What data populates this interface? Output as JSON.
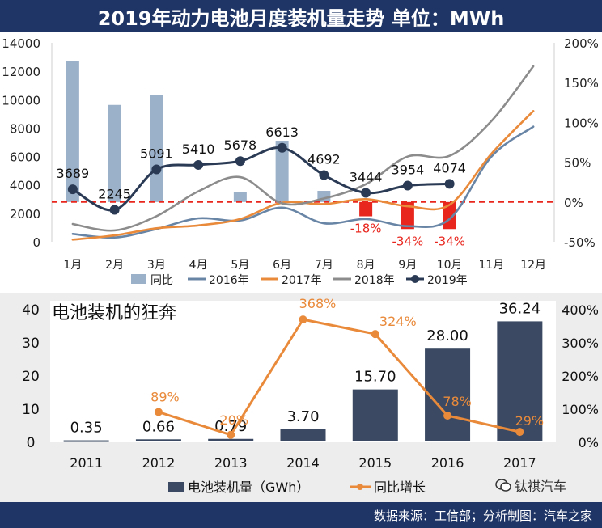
{
  "header": {
    "title": "2019年动力电池月度装机量走势  单位：MWh"
  },
  "footer": {
    "source": "数据来源：工信部；分析制图：汽车之家"
  },
  "watermark": {
    "text": "钛祺汽车",
    "icon": "wechat-icon"
  },
  "colors": {
    "banner": "#1f3566",
    "bar1": "#9bb0c9",
    "negbar": "#e8261e",
    "s2016": "#6985a6",
    "s2017": "#e98a3b",
    "s2018": "#8c8c8c",
    "s2019": "#2a3a55",
    "bar2": "#3b4a62",
    "orange": "#e98a3b",
    "panel2": "#ededed"
  },
  "chart_data": [
    {
      "type": "bar+line",
      "title": "2019年动力电池月度装机量走势",
      "categories": [
        "1月",
        "2月",
        "3月",
        "4月",
        "5月",
        "6月",
        "7月",
        "8月",
        "9月",
        "10月",
        "11月",
        "12月"
      ],
      "y_left": {
        "ticks": [
          "14000",
          "12000",
          "10000",
          "8000",
          "6000",
          "4000",
          "2000",
          "0"
        ],
        "range": [
          0,
          14000
        ]
      },
      "y_right": {
        "ticks": [
          "200%",
          "150%",
          "100%",
          "50%",
          "0%",
          "-50%"
        ],
        "range": [
          -50,
          200
        ]
      },
      "yoy_bars": {
        "name": "同比",
        "values": [
          177,
          122,
          134,
          null,
          13,
          77,
          14,
          -18,
          -34,
          -34,
          null,
          null
        ]
      },
      "negative_labels": [
        "-18%",
        "-34%",
        "-34%"
      ],
      "series": [
        {
          "name": "2016年",
          "values": [
            550,
            300,
            900,
            1650,
            1500,
            2400,
            1300,
            1600,
            1100,
            1600,
            6000,
            8100
          ]
        },
        {
          "name": "2017年",
          "values": [
            150,
            450,
            950,
            1150,
            1600,
            2750,
            2650,
            3000,
            2500,
            2600,
            6200,
            9200
          ]
        },
        {
          "name": "2018年",
          "values": [
            1250,
            800,
            1800,
            3550,
            4550,
            2700,
            3050,
            4050,
            6000,
            6050,
            8500,
            12350
          ]
        },
        {
          "name": "2019年",
          "values": [
            3689,
            2245,
            5091,
            5410,
            5678,
            6613,
            4692,
            3444,
            3954,
            4074,
            null,
            null
          ]
        }
      ],
      "data_labels_2019": [
        "3689",
        "2245",
        "5091",
        "5410",
        "5678",
        "6613",
        "4692",
        "3444",
        "3954",
        "4074"
      ],
      "legend": [
        "同比",
        "2016年",
        "2017年",
        "2018年",
        "2019年"
      ]
    },
    {
      "type": "bar+line",
      "title": "电池装机的狂奔",
      "categories": [
        "2011",
        "2012",
        "2013",
        "2014",
        "2015",
        "2016",
        "2017"
      ],
      "y_left": {
        "ticks": [
          "40",
          "30",
          "20",
          "10",
          "0"
        ],
        "range": [
          0,
          40
        ]
      },
      "y_right": {
        "ticks": [
          "400%",
          "300%",
          "200%",
          "100%",
          "0%"
        ],
        "range": [
          0,
          400
        ]
      },
      "series": [
        {
          "name": "电池装机量（GWh）",
          "values": [
            0.35,
            0.66,
            0.79,
            3.7,
            15.7,
            28.0,
            36.24
          ],
          "labels": [
            "0.35",
            "0.66",
            "0.79",
            "3.70",
            "15.70",
            "28.00",
            "36.24"
          ]
        },
        {
          "name": "同比增长",
          "values": [
            null,
            89,
            20,
            368,
            324,
            78,
            29
          ],
          "labels": [
            "",
            "89%",
            "20%",
            "368%",
            "324%",
            "78%",
            "29%"
          ]
        }
      ],
      "legend": [
        "电池装机量（GWh）",
        "同比增长"
      ]
    }
  ]
}
